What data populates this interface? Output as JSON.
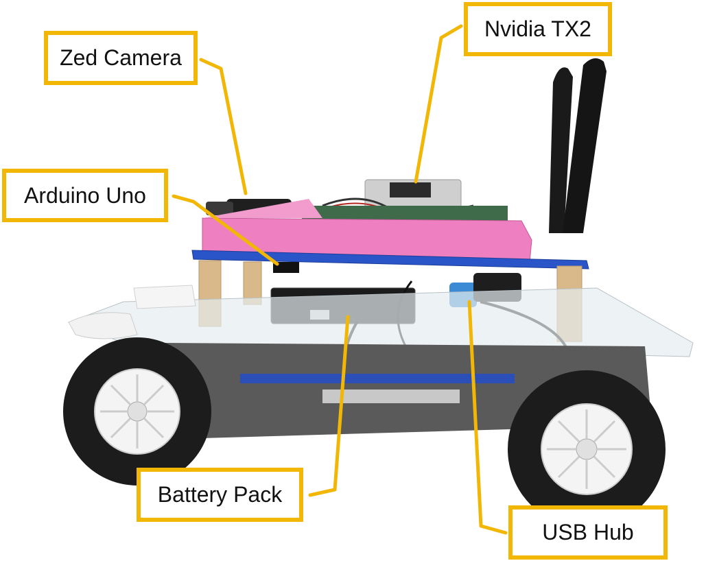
{
  "labels": {
    "zed_camera": "Zed Camera",
    "nvidia_tx2": "Nvidia TX2",
    "arduino_uno": "Arduino Uno",
    "battery_pack": "Battery Pack",
    "usb_hub": "USB Hub"
  },
  "colors": {
    "callout_border": "#F2B705",
    "leader_line": "#F2B705",
    "pink_case": "#EE7FC0",
    "blue_plate": "#2A55C9",
    "wood_spacer": "#D9B98A",
    "tire": "#1C1C1C",
    "wheel_rim": "#F4F4F4",
    "chassis": "#5A5A5A",
    "board": "#3F6B4A"
  }
}
